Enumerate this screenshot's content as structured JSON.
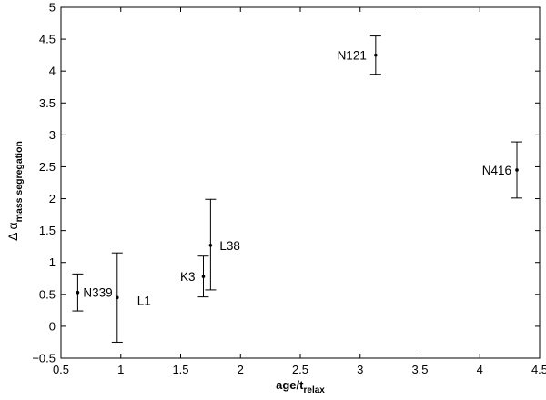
{
  "chart_data": {
    "type": "scatter",
    "title": "",
    "xlabel": {
      "main": "age/t",
      "sub": "relax"
    },
    "ylabel": {
      "greek": "Δ α",
      "sub": "mass segregation"
    },
    "xlim": [
      0.5,
      4.5
    ],
    "ylim": [
      -0.5,
      5
    ],
    "xticks": [
      "0.5",
      "1",
      "1.5",
      "2",
      "2.5",
      "3",
      "3.5",
      "4",
      "4.5"
    ],
    "yticks": [
      "−0.5",
      "0",
      "0.5",
      "1",
      "1.5",
      "2",
      "2.5",
      "3",
      "3.5",
      "4",
      "4.5",
      "5"
    ],
    "grid": false,
    "points": [
      {
        "label": "N339",
        "x": 0.64,
        "y": 0.53,
        "ylo": 0.24,
        "yhi": 0.82
      },
      {
        "label": "L1",
        "x": 0.97,
        "y": 0.45,
        "ylo": -0.25,
        "yhi": 1.15
      },
      {
        "label": "K3",
        "x": 1.69,
        "y": 0.78,
        "ylo": 0.46,
        "yhi": 1.1
      },
      {
        "label": "L38",
        "x": 1.75,
        "y": 1.27,
        "ylo": 0.57,
        "yhi": 1.99
      },
      {
        "label": "N121",
        "x": 3.13,
        "y": 4.25,
        "ylo": 3.95,
        "yhi": 4.55
      },
      {
        "label": "N416",
        "x": 4.31,
        "y": 2.45,
        "ylo": 2.01,
        "yhi": 2.89
      }
    ]
  }
}
